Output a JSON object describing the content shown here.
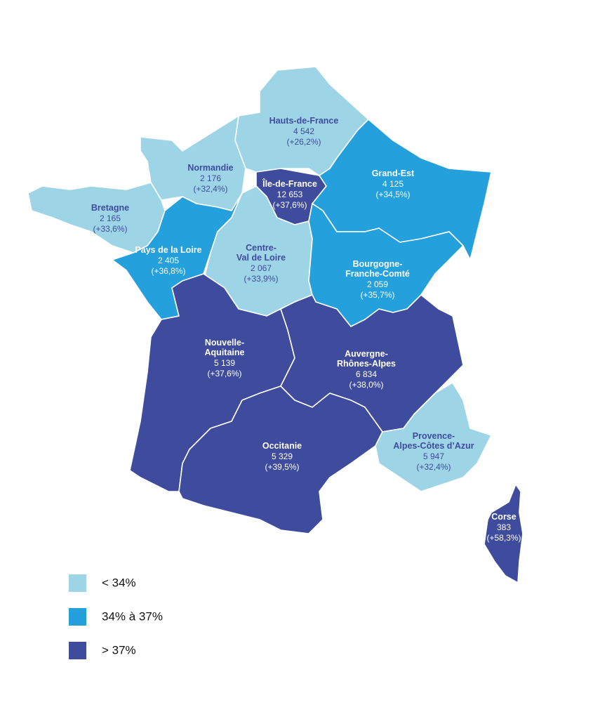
{
  "regions": [
    {
      "name": "Hauts-de-France",
      "value": "4 542",
      "change": "(+26,2%)",
      "class": 0
    },
    {
      "name": "Normandie",
      "value": "2 176",
      "change": "(+32,4%)",
      "class": 0
    },
    {
      "name": "Île-de-France",
      "value": "12 653",
      "change": "(+37,6%)",
      "class": 2
    },
    {
      "name": "Grand-Est",
      "value": "4 125",
      "change": "(+34,5%)",
      "class": 1
    },
    {
      "name": "Bretagne",
      "value": "2 165",
      "change": "(+33,6%)",
      "class": 0
    },
    {
      "name": "Pays de la Loire",
      "value": "2 405",
      "change": "(+36,8%)",
      "class": 1
    },
    {
      "name": "Centre-\nVal de Loire",
      "value": "2 067",
      "change": "(+33,9%)",
      "class": 0
    },
    {
      "name": "Bourgogne-\nFranche-Comté",
      "value": "2 059",
      "change": "(+35,7%)",
      "class": 1
    },
    {
      "name": "Nouvelle-\nAquitaine",
      "value": "5 139",
      "change": "(+37,6%)",
      "class": 2
    },
    {
      "name": "Auvergne-\nRhônes-Alpes",
      "value": "6 834",
      "change": "(+38,0%)",
      "class": 2
    },
    {
      "name": "Occitanie",
      "value": "5 329",
      "change": "(+39,5%)",
      "class": 2
    },
    {
      "name": "Provence-\nAlpes-Côtes d’Azur",
      "value": "5 947",
      "change": "(+32,4%)",
      "class": 0
    },
    {
      "name": "Corse",
      "value": "383",
      "change": "(+58,3%)",
      "class": 2
    }
  ],
  "legend": [
    {
      "label": "< 34%",
      "color": "#9dd4e6"
    },
    {
      "label": "34% à 37%",
      "color": "#24a0dc"
    },
    {
      "label": "> 37%",
      "color": "#3f4c9d"
    }
  ]
}
